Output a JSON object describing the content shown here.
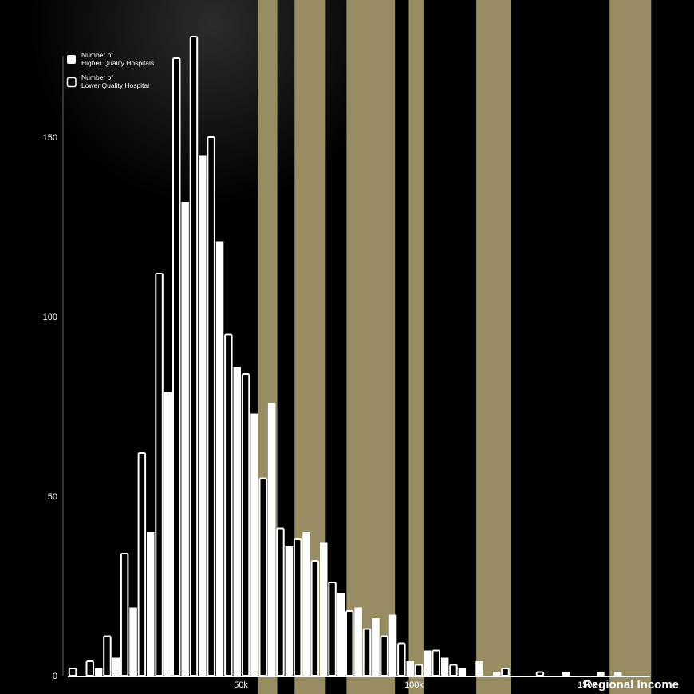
{
  "chart_data": {
    "type": "bar",
    "xlabel": "Regional Income",
    "ylabel": "",
    "x_ticks": [
      {
        "value": 50000,
        "label": "50k"
      },
      {
        "value": 100000,
        "label": "100k"
      },
      {
        "value": 150000,
        "label": "150k"
      }
    ],
    "y_ticks": [
      0,
      50,
      100,
      150
    ],
    "ylim": [
      0,
      178
    ],
    "xlim": [
      0,
      170000
    ],
    "bin_width": 5000,
    "legend_position": "top-left",
    "colors": {
      "background": "#000000",
      "band": "#988d62",
      "bar": "#ffffff",
      "bar_outline": "#ffffff"
    },
    "series": [
      {
        "name": "Number of\nHigher Quality Hospitals",
        "style": "filled",
        "points": [
          [
            0,
            0
          ],
          [
            5000,
            2
          ],
          [
            10000,
            5
          ],
          [
            15000,
            19
          ],
          [
            20000,
            40
          ],
          [
            25000,
            79
          ],
          [
            30000,
            132
          ],
          [
            35000,
            145
          ],
          [
            40000,
            121
          ],
          [
            45000,
            86
          ],
          [
            50000,
            73
          ],
          [
            55000,
            76
          ],
          [
            60000,
            36
          ],
          [
            65000,
            40
          ],
          [
            70000,
            37
          ],
          [
            75000,
            23
          ],
          [
            80000,
            19
          ],
          [
            85000,
            16
          ],
          [
            90000,
            17
          ],
          [
            95000,
            4
          ],
          [
            100000,
            7
          ],
          [
            105000,
            5
          ],
          [
            110000,
            2
          ],
          [
            115000,
            4
          ],
          [
            120000,
            1
          ],
          [
            140000,
            1
          ],
          [
            150000,
            1
          ],
          [
            155000,
            1
          ]
        ]
      },
      {
        "name": "Number of\nLower Quality Hospital",
        "style": "outline",
        "points": [
          [
            0,
            2
          ],
          [
            5000,
            4
          ],
          [
            10000,
            11
          ],
          [
            15000,
            34
          ],
          [
            20000,
            62
          ],
          [
            25000,
            112
          ],
          [
            30000,
            172
          ],
          [
            35000,
            178
          ],
          [
            40000,
            150
          ],
          [
            45000,
            95
          ],
          [
            50000,
            84
          ],
          [
            55000,
            55
          ],
          [
            60000,
            41
          ],
          [
            65000,
            38
          ],
          [
            70000,
            32
          ],
          [
            75000,
            26
          ],
          [
            80000,
            18
          ],
          [
            85000,
            13
          ],
          [
            90000,
            11
          ],
          [
            95000,
            9
          ],
          [
            100000,
            3
          ],
          [
            105000,
            7
          ],
          [
            110000,
            3
          ],
          [
            125000,
            2
          ],
          [
            135000,
            1
          ]
        ]
      }
    ],
    "bands": [
      [
        55000,
        60500
      ],
      [
        65500,
        74500
      ],
      [
        80500,
        94500
      ],
      [
        98500,
        103000
      ],
      [
        118000,
        128000
      ],
      [
        156500,
        168500
      ]
    ]
  }
}
